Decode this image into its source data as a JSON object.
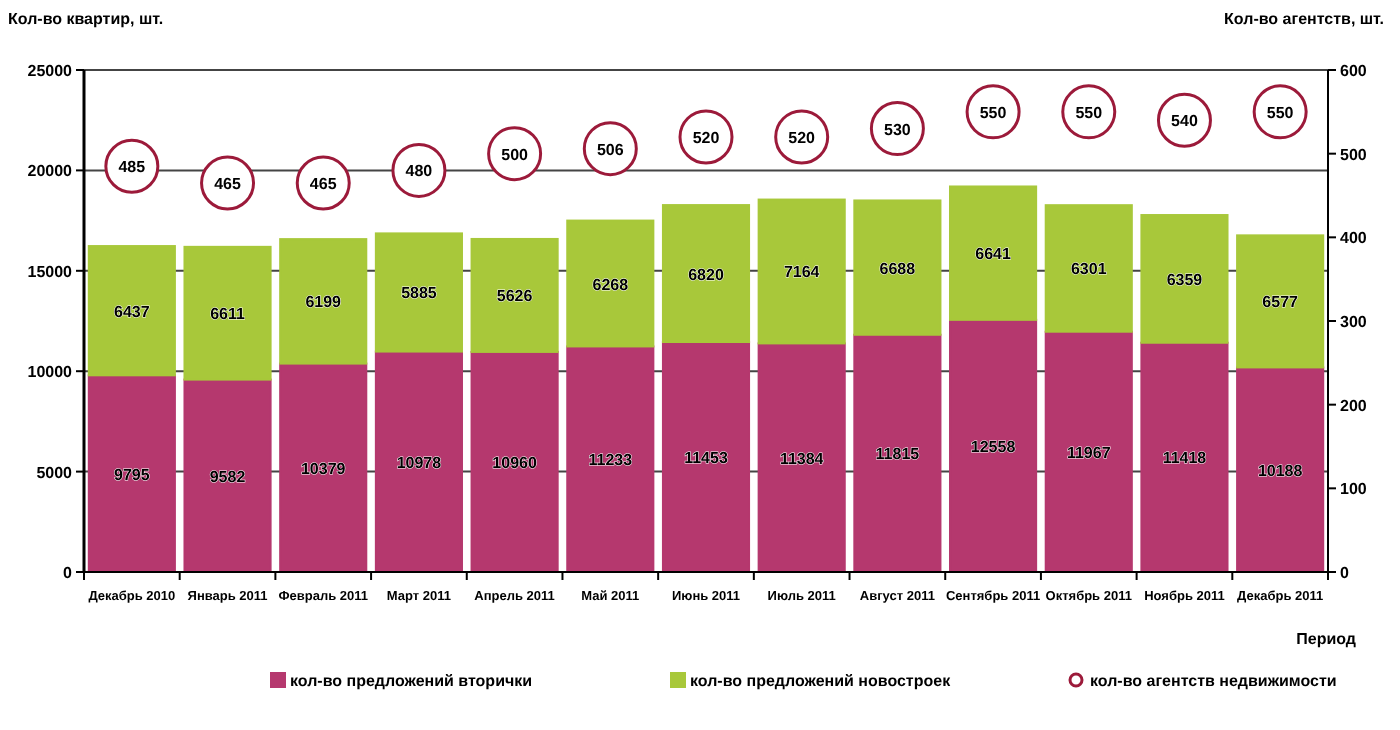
{
  "chart_data": {
    "type": "bar",
    "stacked": true,
    "xlabel": "Период",
    "ylabel": "Кол-во квартир, шт.",
    "y2label": "Кол-во агентств, шт.",
    "categories": [
      "Декабрь 2010",
      "Январь 2011",
      "Февраль 2011",
      "Март 2011",
      "Апрель 2011",
      "Май 2011",
      "Июнь 2011",
      "Июль 2011",
      "Август 2011",
      "Сентябрь 2011",
      "Октябрь 2011",
      "Ноябрь 2011",
      "Декабрь 2011"
    ],
    "series": [
      {
        "name": "кол-во предложений вторички",
        "color": "#b5386e",
        "values": [
          9795,
          9582,
          10379,
          10978,
          10960,
          11233,
          11453,
          11384,
          11815,
          12558,
          11967,
          11418,
          10188
        ]
      },
      {
        "name": "кол-во предложений новостроек",
        "color": "#a8c83a",
        "values": [
          6437,
          6611,
          6199,
          5885,
          5626,
          6268,
          6820,
          7164,
          6688,
          6641,
          6301,
          6359,
          6577
        ]
      },
      {
        "name": "кол-во агентств недвижимости",
        "type": "scatter",
        "axis": "y2",
        "marker": "circle",
        "color": "#9c1a3a",
        "values": [
          485,
          465,
          465,
          480,
          500,
          506,
          520,
          520,
          530,
          550,
          550,
          540,
          550
        ]
      }
    ],
    "ylim": [
      0,
      25000
    ],
    "yticks": [
      0,
      5000,
      10000,
      15000,
      20000,
      25000
    ],
    "y2lim": [
      0,
      600
    ],
    "y2ticks": [
      0,
      100,
      200,
      300,
      400,
      500,
      600
    ],
    "grid": "y",
    "legend": "bottom",
    "data_labels": true
  }
}
